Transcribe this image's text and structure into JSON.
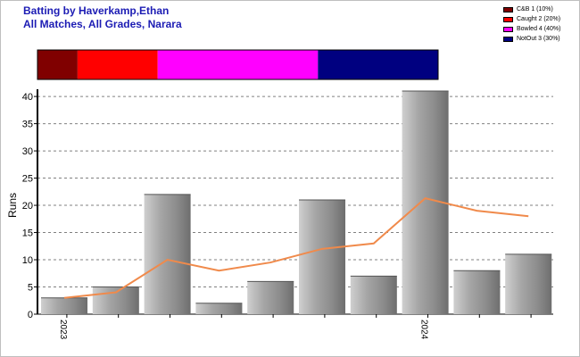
{
  "chart_data": {
    "type": "bar",
    "title": "Batting by Haverkamp,Ethan",
    "subtitle": "All Matches, All Grades, Narara",
    "ylabel": "Runs",
    "xlabel": "",
    "ylim": [
      0,
      41
    ],
    "yticks": [
      0,
      5,
      10,
      15,
      20,
      25,
      30,
      35,
      40
    ],
    "grid": true,
    "legend_position": "top-right",
    "x_tick_labels": [
      {
        "label": "2023",
        "index": 0
      },
      {
        "label": "2024",
        "index": 7
      }
    ],
    "values": [
      3,
      5,
      22,
      2,
      6,
      21,
      7,
      41,
      8,
      11
    ],
    "series": [
      {
        "name": "",
        "type": "line",
        "color": "#f08a4b",
        "values": [
          3,
          4,
          10,
          8,
          9.5,
          12,
          13,
          21.3,
          19,
          18
        ]
      }
    ],
    "dismissals": [
      {
        "name": "C&B 1 (10%)",
        "fraction": 0.1,
        "color": "#800000"
      },
      {
        "name": "Caught 2 (20%)",
        "fraction": 0.2,
        "color": "#ff0000"
      },
      {
        "name": "Bowled 4 (40%)",
        "fraction": 0.4,
        "color": "#ff00ff"
      },
      {
        "name": "NotOut 3 (30%)",
        "fraction": 0.3,
        "color": "#000080"
      }
    ]
  }
}
